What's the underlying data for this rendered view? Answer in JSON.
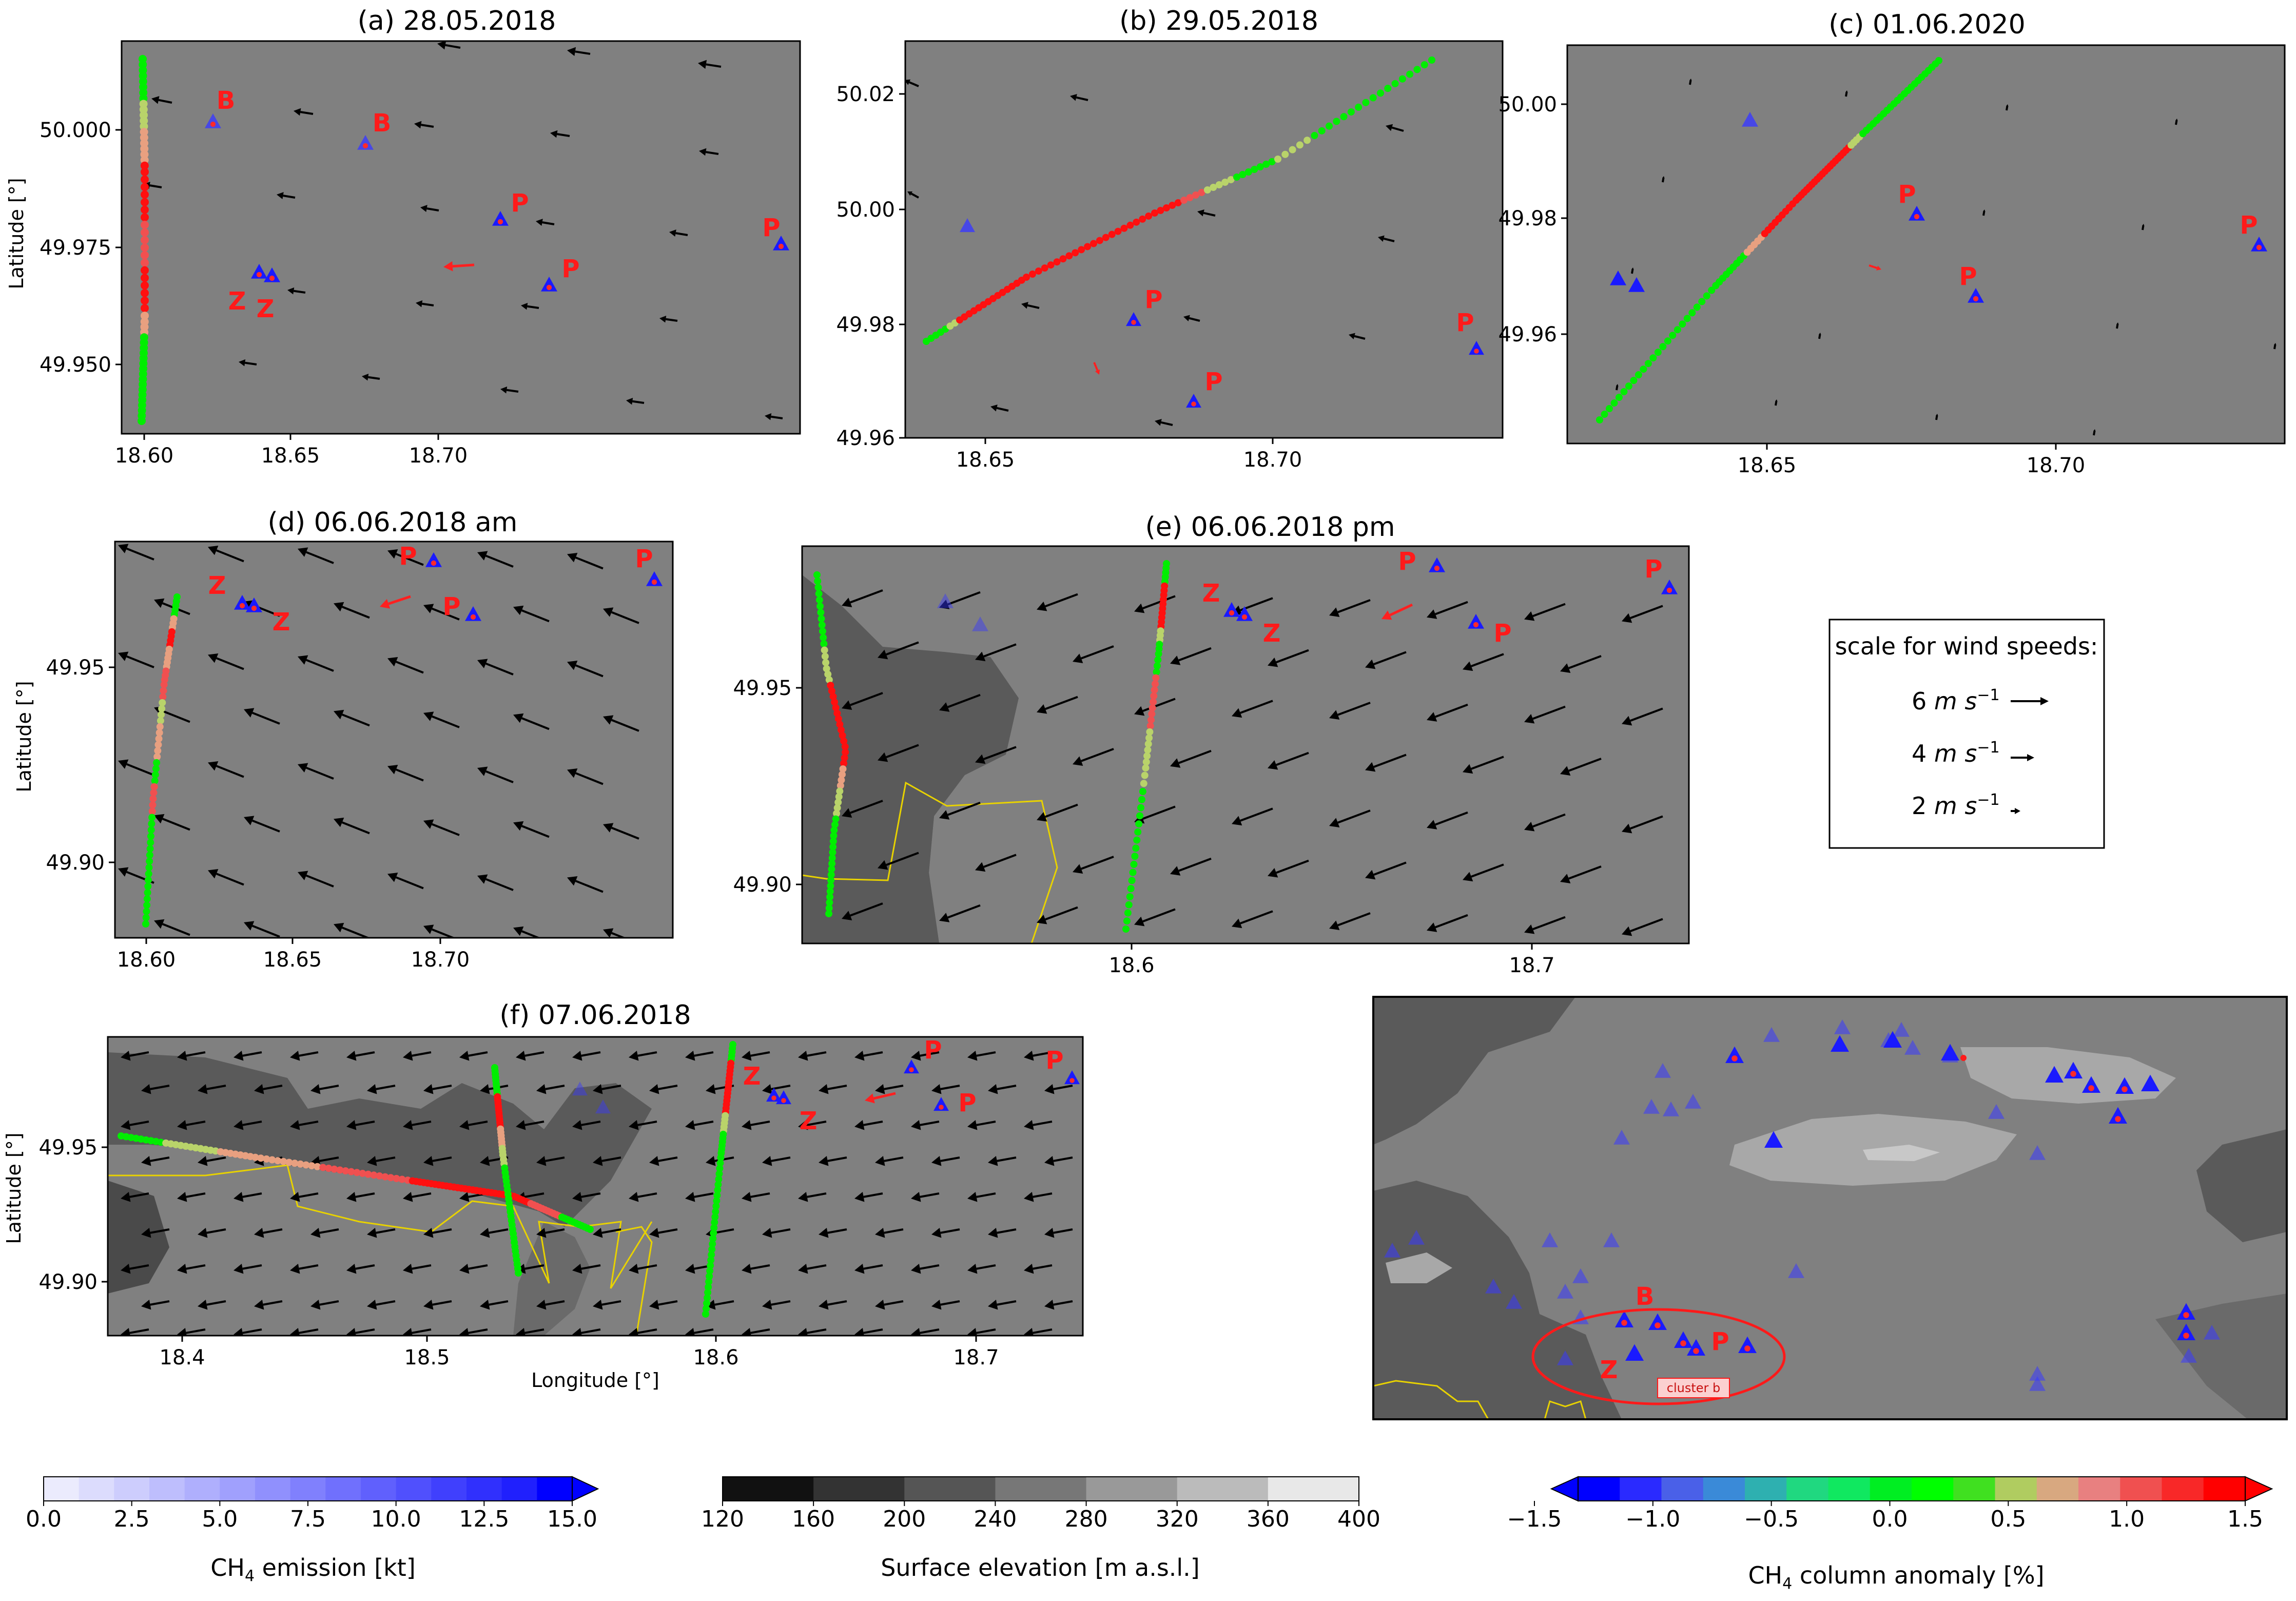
{
  "panels": [
    {
      "id": "a",
      "title": "(a) 28.05.2018",
      "ylabel": "Latitude [°]",
      "xlabel": "",
      "xticks": [
        "18.60",
        "18.65",
        "18.70"
      ],
      "yticks": [
        "50.000",
        "49.975",
        "49.950"
      ]
    },
    {
      "id": "b",
      "title": "(b) 29.05.2018",
      "ylabel": "",
      "xlabel": "",
      "xticks": [
        "18.65",
        "18.70"
      ],
      "yticks": [
        "50.02",
        "50.00",
        "49.98",
        "49.96"
      ]
    },
    {
      "id": "c",
      "title": "(c) 01.06.2020",
      "ylabel": "",
      "xlabel": "",
      "xticks": [
        "18.65",
        "18.70"
      ],
      "yticks": [
        "50.00",
        "49.98",
        "49.96"
      ]
    },
    {
      "id": "d",
      "title": "(d) 06.06.2018 am",
      "ylabel": "Latitude [°]",
      "xlabel": "",
      "xticks": [
        "18.60",
        "18.65",
        "18.70"
      ],
      "yticks": [
        "49.95",
        "49.90"
      ]
    },
    {
      "id": "e",
      "title": "(e) 06.06.2018 pm",
      "ylabel": "",
      "xlabel": "",
      "xticks": [
        "18.6",
        "18.7"
      ],
      "yticks": [
        "49.95",
        "49.90"
      ]
    },
    {
      "id": "f",
      "title": "(f) 07.06.2018",
      "ylabel": "Latitude [°]",
      "xlabel": "Longitude [°]",
      "xticks": [
        "18.4",
        "18.5",
        "18.6",
        "18.7"
      ],
      "yticks": [
        "49.95",
        "49.90"
      ]
    },
    {
      "id": "g",
      "title": "",
      "ylabel": "",
      "xlabel": "",
      "xticks": [],
      "yticks": []
    }
  ],
  "source_letters": {
    "B": "B",
    "P": "P",
    "Z": "Z"
  },
  "inset": {
    "cluster_label": "cluster b"
  },
  "wind_scale": {
    "title": "scale for wind speeds:",
    "entries": [
      {
        "value": "6",
        "unit": "m s",
        "exp": "−1"
      },
      {
        "value": "4",
        "unit": "m s",
        "exp": "−1"
      },
      {
        "value": "2",
        "unit": "m s",
        "exp": "−1"
      }
    ]
  },
  "colorbars": {
    "emission": {
      "label_main": "CH",
      "label_sub": "4",
      "label_rest": " emission [kt]",
      "ticks": [
        "0.0",
        "2.5",
        "5.0",
        "7.5",
        "10.0",
        "12.5",
        "15.0"
      ],
      "colors": [
        "#ebebfd",
        "#dcdcfd",
        "#cdcdfd",
        "#bebefd",
        "#afaffd",
        "#a0a0fd",
        "#9090fd",
        "#8080fd",
        "#7070fd",
        "#6060fd",
        "#5050fd",
        "#4040fd",
        "#3030fd",
        "#2020fd",
        "#0000ff"
      ]
    },
    "elevation": {
      "label": "Surface elevation [m a.s.l.]",
      "ticks": [
        "120",
        "160",
        "200",
        "240",
        "280",
        "320",
        "360",
        "400"
      ],
      "colors": [
        "#111111",
        "#333333",
        "#555555",
        "#777777",
        "#999999",
        "#bbbbbb",
        "#e8e8e8"
      ]
    },
    "anomaly": {
      "label_main": "CH",
      "label_sub": "4",
      "label_rest": " column anomaly [%]",
      "ticks": [
        "−1.5",
        "−1.0",
        "−0.5",
        "0.0",
        "0.5",
        "1.0",
        "1.5"
      ],
      "colors": [
        "#0000ff",
        "#2a2aff",
        "#4a60e8",
        "#3a8ad8",
        "#2eb0b0",
        "#20d880",
        "#10e860",
        "#00ee22",
        "#00ff00",
        "#40e020",
        "#b0cc60",
        "#d8a880",
        "#e88080",
        "#f05050",
        "#f82828",
        "#ff0000"
      ]
    }
  },
  "chart_data": [
    {
      "type": "scatter",
      "panel": "a",
      "title": "(a) 28.05.2018",
      "ylabel": "Latitude [°]",
      "xlim": [
        18.595,
        18.74
      ],
      "ylim": [
        49.937,
        50.017
      ],
      "grid": false
    },
    {
      "type": "scatter",
      "panel": "b",
      "title": "(b) 29.05.2018",
      "xlim": [
        18.635,
        18.74
      ],
      "ylim": [
        49.96,
        50.028
      ],
      "grid": false
    },
    {
      "type": "scatter",
      "panel": "c",
      "title": "(c) 01.06.2020",
      "xlim": [
        18.62,
        18.74
      ],
      "ylim": [
        49.942,
        50.01
      ],
      "grid": false
    },
    {
      "type": "scatter",
      "panel": "d",
      "title": "(d) 06.06.2018 am",
      "ylabel": "Latitude [°]",
      "xlim": [
        18.59,
        18.74
      ],
      "ylim": [
        49.88,
        49.98
      ],
      "grid": false
    },
    {
      "type": "scatter",
      "panel": "e",
      "title": "(e) 06.06.2018 pm",
      "xlim": [
        18.51,
        18.74
      ],
      "ylim": [
        49.885,
        49.98
      ],
      "grid": false
    },
    {
      "type": "scatter",
      "panel": "f",
      "title": "(f) 07.06.2018",
      "xlabel": "Longitude [°]",
      "ylabel": "Latitude [°]",
      "xlim": [
        18.375,
        18.74
      ],
      "ylim": [
        49.88,
        49.99
      ],
      "grid": false
    }
  ]
}
